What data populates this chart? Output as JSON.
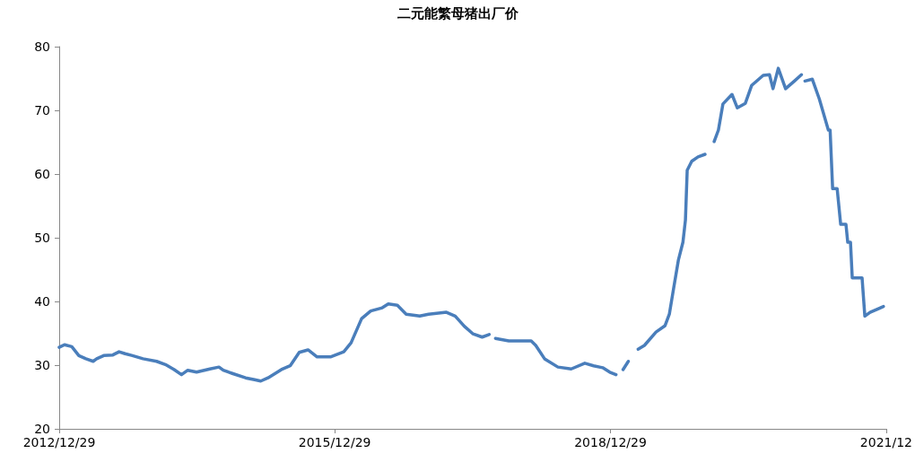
{
  "chart_data": {
    "type": "line",
    "title": "二元能繁母猪出厂价",
    "x": [
      "2012-12-29",
      "2013-01-19",
      "2013-02-17",
      "2013-03-17",
      "2013-04-14",
      "2013-05-13",
      "2013-05-27",
      "2013-06-24",
      "2013-07-30",
      "2013-08-24",
      "2013-09-17",
      "2013-10-16",
      "2013-11-27",
      "2014-01-20",
      "2014-02-24",
      "2014-03-31",
      "2014-04-29",
      "2014-05-24",
      "2014-06-28",
      "2014-08-20",
      "2014-09-25",
      "2014-10-12",
      "2014-11-17",
      "2015-01-09",
      "2015-02-14",
      "2015-03-10",
      "2015-04-08",
      "2015-05-31",
      "2015-07-05",
      "2015-08-10",
      "2015-09-14",
      "2015-10-20",
      "2015-12-12",
      "2016-02-03",
      "2016-03-03",
      "2016-04-14",
      "2016-05-20",
      "2016-07-05",
      "2016-07-29",
      "2016-09-03",
      "2016-10-08",
      "2016-12-01",
      "2017-01-05",
      "2017-03-17",
      "2017-04-21",
      "2017-05-27",
      "2017-07-01",
      "2017-08-06",
      "2017-09-03",
      "2017-09-14",
      "2017-09-28",
      "2017-11-20",
      "2018-02-17",
      "2018-03-07",
      "2018-04-11",
      "2018-06-03",
      "2018-07-26",
      "2018-09-18",
      "2018-10-23",
      "2018-11-28",
      "2018-12-26",
      "2019-01-20",
      "2019-02-07",
      "2019-02-17",
      "2019-03-10",
      "2019-03-24",
      "2019-04-18",
      "2019-05-13",
      "2019-06-28",
      "2019-08-03",
      "2019-08-20",
      "2019-09-07",
      "2019-09-25",
      "2019-10-13",
      "2019-10-23",
      "2019-10-30",
      "2019-11-17",
      "2019-12-12",
      "2020-01-09",
      "2020-01-27",
      "2020-02-14",
      "2020-03-02",
      "2020-03-20",
      "2020-04-25",
      "2020-05-16",
      "2020-06-17",
      "2020-07-12",
      "2020-08-27",
      "2020-09-21",
      "2020-10-05",
      "2020-10-26",
      "2020-11-24",
      "2020-12-29",
      "2021-01-26",
      "2021-02-02",
      "2021-02-09",
      "2021-03-10",
      "2021-04-07",
      "2021-05-13",
      "2021-05-20",
      "2021-05-30",
      "2021-06-17",
      "2021-07-01",
      "2021-07-22",
      "2021-07-29",
      "2021-08-09",
      "2021-08-16",
      "2021-09-24",
      "2021-10-05",
      "2021-10-26",
      "2021-11-30",
      "2021-12-18"
    ],
    "series": [
      {
        "color": "#4a7ebb",
        "values": [
          32.8,
          33.2,
          32.9,
          31.5,
          31.0,
          30.6,
          31.0,
          31.5,
          31.6,
          32.1,
          31.8,
          31.5,
          31.0,
          30.6,
          30.1,
          29.3,
          28.5,
          29.2,
          28.9,
          29.4,
          29.7,
          29.2,
          28.7,
          28.0,
          27.7,
          27.5,
          28.0,
          29.3,
          29.9,
          32.0,
          32.4,
          31.3,
          31.3,
          32.1,
          33.5,
          37.3,
          38.5,
          39.0,
          39.6,
          39.4,
          38.0,
          37.7,
          38.0,
          38.3,
          37.7,
          36.1,
          34.9,
          34.4,
          34.8,
          null,
          34.2,
          33.8,
          33.8,
          33.1,
          31.0,
          29.7,
          29.4,
          30.3,
          29.9,
          29.6,
          28.9,
          28.5,
          null,
          29.3,
          30.6,
          null,
          32.5,
          33.1,
          35.2,
          36.2,
          38.0,
          42.3,
          46.5,
          49.3,
          52.8,
          60.6,
          62.0,
          62.7,
          63.1,
          null,
          65.1,
          66.9,
          71.0,
          72.5,
          70.4,
          71.1,
          73.9,
          75.5,
          75.6,
          73.4,
          76.6,
          73.4,
          74.6,
          75.6,
          null,
          74.6,
          74.9,
          71.8,
          66.9,
          66.9,
          57.7,
          57.7,
          52.1,
          52.1,
          49.3,
          49.3,
          43.7,
          43.7,
          37.7,
          38.3,
          38.9,
          39.2
        ]
      }
    ],
    "xlim": [
      "2012-12-29",
      "2021-12-29"
    ],
    "xticks": [
      {
        "value": "2012-12-29",
        "label": "2012/12/29"
      },
      {
        "value": "2015-12-29",
        "label": "2015/12/29"
      },
      {
        "value": "2018-12-29",
        "label": "2018/12/29"
      },
      {
        "value": "2021-12-29",
        "label": "2021/12"
      }
    ],
    "ylim": [
      20,
      80
    ],
    "yticks": [
      20,
      30,
      40,
      50,
      60,
      70,
      80
    ],
    "grid": false,
    "marker": "none",
    "line_style": "solid"
  }
}
